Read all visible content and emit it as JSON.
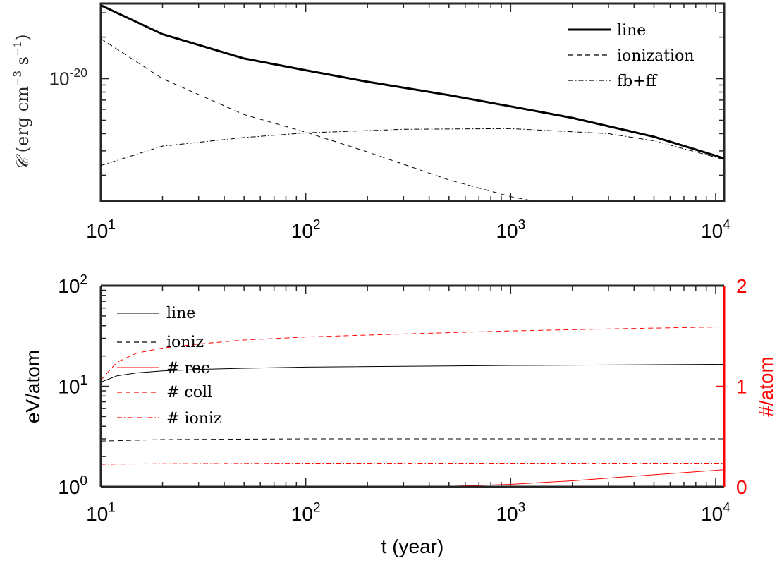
{
  "chart_data": [
    {
      "type": "line",
      "xscale": "log",
      "yscale": "log",
      "xlim": [
        10,
        11000
      ],
      "ylim": [
        1.3e-21,
        3.5e-20
      ],
      "ylabel": "𝒞 (erg cm⁻³ s⁻¹)",
      "ylabel_parts": {
        "symbol": "𝒞",
        "open": " (erg cm",
        "cm_exp": "−3",
        "s": " s",
        "s_exp": "−1",
        "close": ")"
      },
      "xticks": [
        {
          "value": 10,
          "base": "10",
          "exp": "1"
        },
        {
          "value": 100,
          "base": "10",
          "exp": "2"
        },
        {
          "value": 1000,
          "base": "10",
          "exp": "3"
        },
        {
          "value": 10000,
          "base": "10",
          "exp": "4"
        }
      ],
      "yticks": [
        {
          "value": 1e-20,
          "base": "10",
          "exp": "-20"
        }
      ],
      "legend_position": "top-right",
      "series": [
        {
          "name": "line",
          "style": "solid",
          "color": "#000000",
          "width": 3,
          "x": [
            10,
            20,
            50,
            100,
            200,
            500,
            1000,
            2000,
            5000,
            11000
          ],
          "y": [
            3.4e-20,
            2.1e-20,
            1.4e-20,
            1.15e-20,
            9.5e-21,
            7.6e-21,
            6.3e-21,
            5.2e-21,
            3.8e-21,
            2.65e-21
          ]
        },
        {
          "name": "ionization",
          "style": "dashed",
          "color": "#000000",
          "width": 1,
          "x": [
            10,
            20,
            50,
            100,
            200,
            500,
            1000,
            1300
          ],
          "y": [
            1.95e-20,
            1e-20,
            5.5e-21,
            4.1e-21,
            2.95e-21,
            1.85e-21,
            1.4e-21,
            1.3e-21
          ]
        },
        {
          "name": "fb+ff",
          "style": "dashdot",
          "color": "#000000",
          "width": 1,
          "x": [
            10,
            20,
            50,
            100,
            300,
            1000,
            3000,
            5000,
            11000
          ],
          "y": [
            2.35e-21,
            3.25e-21,
            3.75e-21,
            4.05e-21,
            4.3e-21,
            4.35e-21,
            4e-21,
            3.55e-21,
            2.6e-21
          ]
        }
      ]
    },
    {
      "type": "line",
      "xscale": "log",
      "xlim": [
        10,
        11000
      ],
      "xlabel": "t (year)",
      "ylabel_left": "eV/atom",
      "ylabel_right": "#/atom",
      "yscale_left": "log",
      "ylim_left": [
        1,
        100
      ],
      "ylim_right": [
        0,
        2
      ],
      "xticks": [
        {
          "value": 10,
          "base": "10",
          "exp": "1"
        },
        {
          "value": 100,
          "base": "10",
          "exp": "2"
        },
        {
          "value": 1000,
          "base": "10",
          "exp": "3"
        },
        {
          "value": 10000,
          "base": "10",
          "exp": "4"
        }
      ],
      "yticks_left": [
        {
          "value": 1,
          "base": "10",
          "exp": "0"
        },
        {
          "value": 10,
          "base": "10",
          "exp": "1"
        },
        {
          "value": 100,
          "base": "10",
          "exp": "2"
        }
      ],
      "yticks_right": [
        {
          "value": 0,
          "label": "0"
        },
        {
          "value": 1,
          "label": "1"
        },
        {
          "value": 2,
          "label": "2"
        }
      ],
      "right_axis_color": "#ff0000",
      "legend_position": "top-left",
      "series": [
        {
          "name": "line",
          "axis": "left",
          "style": "solid",
          "color": "#000000",
          "width": 1,
          "x": [
            10,
            12,
            15,
            20,
            30,
            50,
            100,
            1000,
            11000
          ],
          "y": [
            11.0,
            12.7,
            13.6,
            14.2,
            14.7,
            15.1,
            15.5,
            16.1,
            16.5
          ]
        },
        {
          "name": "ioniz",
          "axis": "left",
          "style": "dashed",
          "color": "#000000",
          "width": 1,
          "x": [
            10,
            20,
            100,
            1000,
            11000
          ],
          "y": [
            2.85,
            2.95,
            3.0,
            3.0,
            3.0
          ]
        },
        {
          "name": "# rec",
          "axis": "right",
          "style": "solid",
          "color": "#ff0000",
          "width": 1,
          "x": [
            10,
            100,
            500,
            1000,
            2000,
            5000,
            11000
          ],
          "y": [
            0.0,
            0.0,
            0.005,
            0.025,
            0.06,
            0.12,
            0.17
          ]
        },
        {
          "name": "# coll",
          "axis": "right",
          "style": "dashed",
          "color": "#ff0000",
          "width": 1,
          "x": [
            10,
            12,
            15,
            20,
            30,
            50,
            100,
            300,
            1000,
            3000,
            11000
          ],
          "y": [
            1.06,
            1.24,
            1.33,
            1.38,
            1.42,
            1.46,
            1.49,
            1.52,
            1.55,
            1.57,
            1.59
          ]
        },
        {
          "name": "# ioniz",
          "axis": "right",
          "style": "dashdot",
          "color": "#ff0000",
          "width": 1,
          "x": [
            10,
            20,
            100,
            1000,
            11000
          ],
          "y": [
            0.225,
            0.23,
            0.235,
            0.235,
            0.235
          ]
        }
      ]
    }
  ]
}
